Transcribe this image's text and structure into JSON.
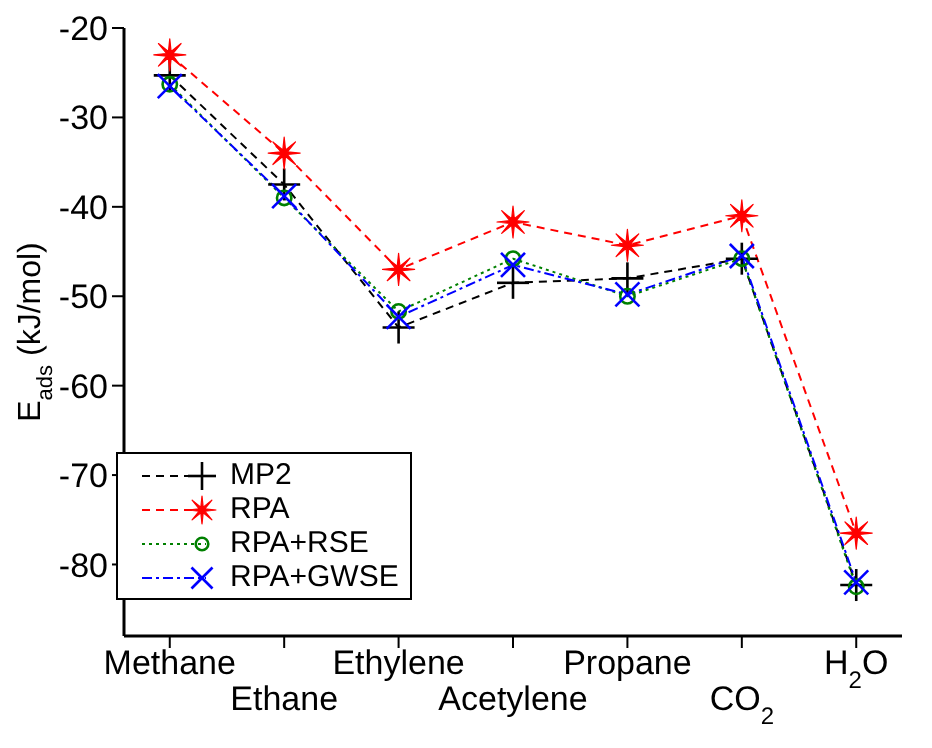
{
  "chart_data": {
    "type": "line",
    "ylabel": "E$_{ads}$ (kJ/mol)",
    "categories": [
      "Methane",
      "Ethane",
      "Ethylene",
      "Acetylene",
      "Propane",
      "CO$_{2}$",
      "H$_{2}$O"
    ],
    "series": [
      {
        "name": "MP2",
        "color": "#000000",
        "marker": "plus",
        "line_style": "dashed",
        "values": [
          -25.3,
          -37.5,
          -53.5,
          -48.5,
          -48,
          -45.8,
          -82.3
        ]
      },
      {
        "name": "RPA",
        "color": "#ff0000",
        "marker": "star",
        "line_style": "dashed",
        "values": [
          -23,
          -34,
          -47,
          -41.7,
          -44.3,
          -41,
          -76.5
        ]
      },
      {
        "name": "RPA+RSE",
        "color": "#008000",
        "marker": "circle",
        "line_style": "dotted",
        "values": [
          -26.3,
          -39,
          -51.7,
          -45.8,
          -50,
          -45.8,
          -82.5
        ]
      },
      {
        "name": "RPA+GWSE",
        "color": "#0000ff",
        "marker": "x",
        "line_style": "dashdot",
        "values": [
          -26.5,
          -38.8,
          -52.3,
          -46.5,
          -49.8,
          -45.5,
          -82
        ]
      }
    ],
    "ylim": [
      -88,
      -20
    ],
    "yticks": [
      -80,
      -70,
      -60,
      -50,
      -40,
      -30,
      -20
    ],
    "grid": false,
    "legend": "bottom left"
  }
}
